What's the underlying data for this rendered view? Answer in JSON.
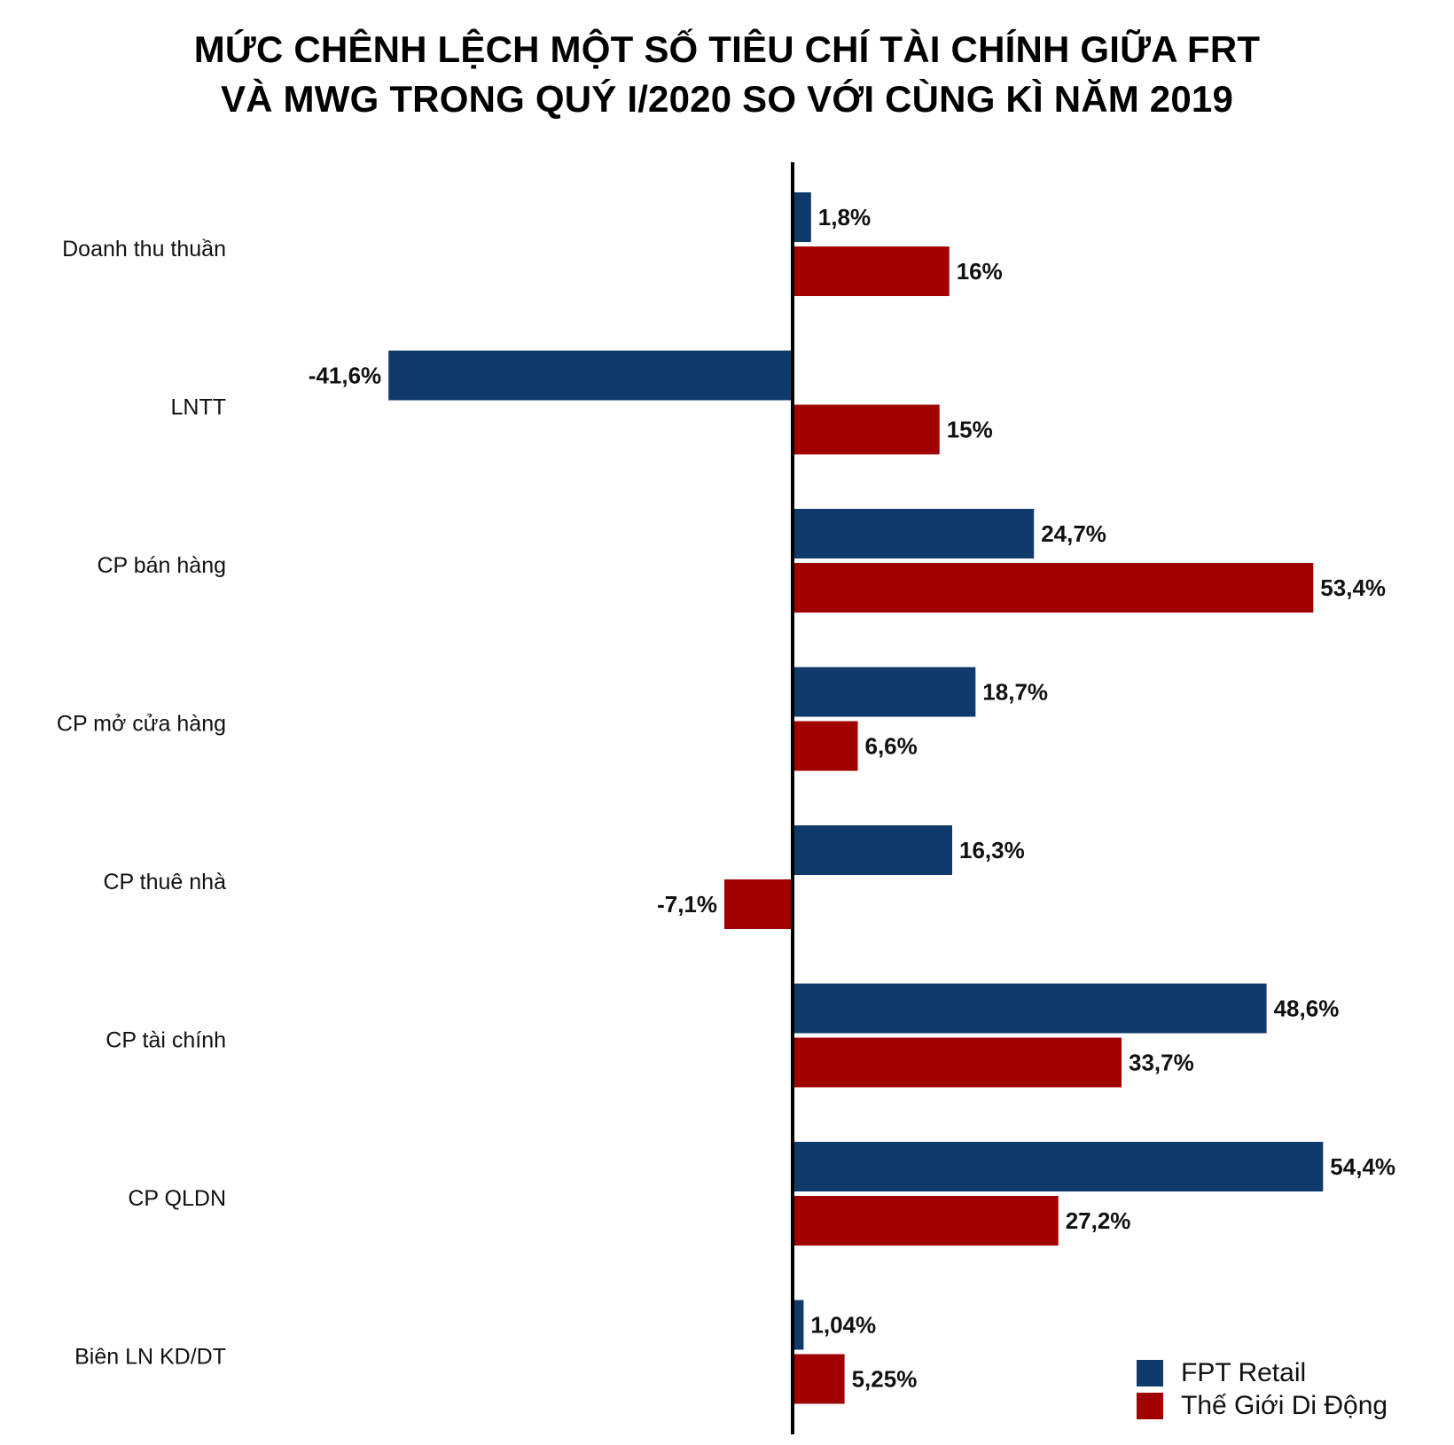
{
  "chart_data": {
    "type": "bar",
    "orientation": "horizontal",
    "title_lines": [
      "MỨC CHÊNH LỆCH MỘT SỐ TIÊU CHÍ TÀI CHÍNH GIỮA FRT",
      "VÀ MWG TRONG QUÝ I/2020 SO VỚI CÙNG KÌ NĂM 2019"
    ],
    "categories": [
      "Doanh thu thuần",
      "LNTT",
      "CP bán hàng",
      "CP mở cửa hàng",
      "CP thuê nhà",
      "CP tài chính",
      "CP QLDN",
      "Biên LN KD/DT"
    ],
    "series": [
      {
        "name": "FPT Retail",
        "color": "#0f3a6b",
        "values": [
          1.8,
          -41.6,
          24.7,
          18.7,
          16.3,
          48.6,
          54.4,
          1.04
        ],
        "labels": [
          "1,8%",
          "-41,6%",
          "24,7%",
          "18,7%",
          "16,3%",
          "48,6%",
          "54,4%",
          "1,04%"
        ]
      },
      {
        "name": "Thế Giới Di Động",
        "color": "#a00000",
        "values": [
          16,
          15,
          53.4,
          6.6,
          -7.1,
          33.7,
          27.2,
          5.25
        ],
        "labels": [
          "16%",
          "15%",
          "53,4%",
          "6,6%",
          "-7,1%",
          "33,7%",
          "27,2%",
          "5,25%"
        ]
      }
    ],
    "xlim": [
      -43,
      60
    ],
    "grid": false,
    "legend_position": "bottom-right"
  }
}
